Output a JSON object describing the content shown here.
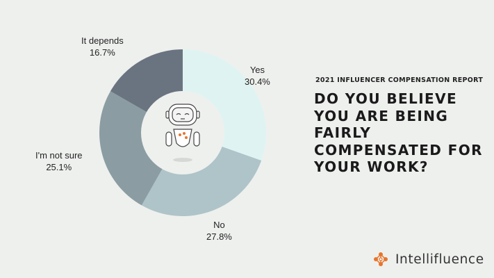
{
  "header": {
    "report_label": "2021 INFLUENCER COMPENSATION REPORT",
    "headline": "DO YOU BELIEVE YOU ARE BEING FAIRLY COMPENSATED FOR YOUR WORK?"
  },
  "brand": {
    "name": "Intellifluence",
    "logo_icon": "network-nodes-icon",
    "accent": "#e8742b"
  },
  "mascot": {
    "icon": "robot-icon"
  },
  "chart_data": {
    "type": "pie",
    "donut": true,
    "categories": [
      "Yes",
      "No",
      "I'm not sure",
      "It depends"
    ],
    "values": [
      30.4,
      27.8,
      25.1,
      16.7
    ],
    "value_labels": [
      "30.4%",
      "27.8%",
      "25.1%",
      "16.7%"
    ],
    "colors": [
      "#dff4f2",
      "#aec4c8",
      "#8b9da3",
      "#6a7480"
    ],
    "start": "top, clockwise"
  }
}
